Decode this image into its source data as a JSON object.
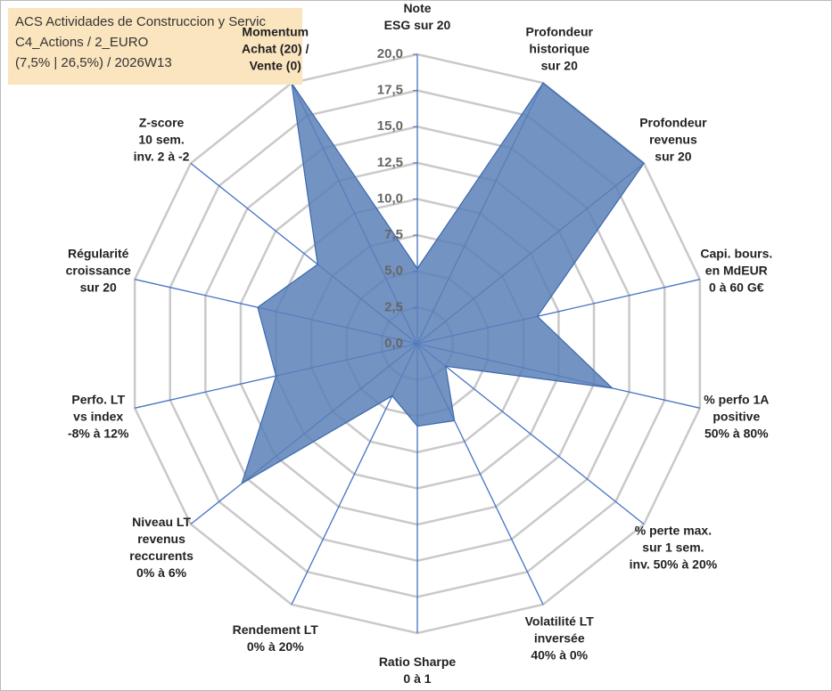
{
  "header": {
    "lines": [
      "ACS Actividades de Construccion y Servic",
      "C4_Actions / 2_EURO",
      "(7,5% | 26,5%) / 2026W13"
    ]
  },
  "chart_data": {
    "type": "radar",
    "categories": [
      "Note\nESG sur 20",
      "Profondeur\nhistorique\nsur 20",
      "Profondeur\nrevenus\nsur 20",
      "Capi. bours.\nen MdEUR\n0 à 60 G€",
      "% perfo 1A\npositive\n50% à 80%",
      "% perte max.\nsur 1 sem.\ninv. 50% à 20%",
      "Volatilité LT\ninversée\n40% à 0%",
      "Ratio Sharpe\n0 à 1",
      "Rendement LT\n0% à 20%",
      "Niveau LT\nrevenus\nreccurents\n0% à 6%",
      "Perfo. LT\nvs index\n-8% à 12%",
      "Régularité\ncroissance\nsur 20",
      "Z-score\n10 sem.\ninv. 2 à -2",
      "Momentum\nAchat (20) /\nVente (0)"
    ],
    "series": [
      {
        "name": "ACS",
        "color": "#5b80b8",
        "values": [
          5.2,
          20,
          20,
          8.5,
          13.8,
          2.5,
          5.9,
          5.7,
          4,
          15.5,
          10,
          11.3,
          8.8,
          20
        ]
      }
    ],
    "ylim": [
      0,
      20
    ],
    "yticks": [
      {
        "value": 0,
        "label": "0,0"
      },
      {
        "value": 2.5,
        "label": "2,5"
      },
      {
        "value": 5,
        "label": "5,0"
      },
      {
        "value": 7.5,
        "label": "7,5"
      },
      {
        "value": 10,
        "label": "10,0"
      },
      {
        "value": 12.5,
        "label": "12,5"
      },
      {
        "value": 15,
        "label": "15,0"
      },
      {
        "value": 17.5,
        "label": "17,5"
      },
      {
        "value": 20,
        "label": "20,0"
      }
    ],
    "grid": true
  }
}
